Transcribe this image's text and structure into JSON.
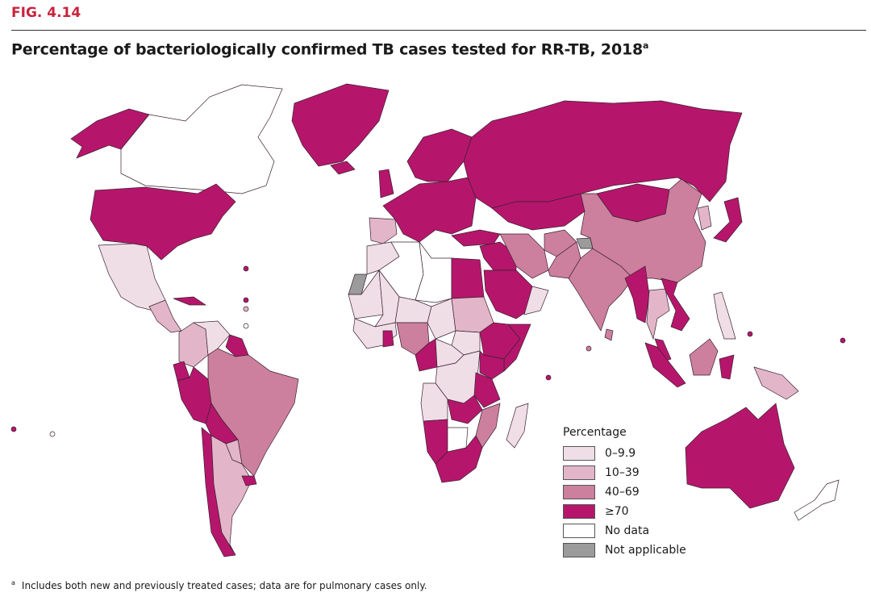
{
  "figure_label": "FIG. 4.14",
  "title": "Percentage of bacteriologically confirmed TB cases tested for RR-TB, 2018",
  "title_note": "a",
  "legend": {
    "title": "Percentage",
    "items": [
      {
        "key": "c1",
        "label": "0–9.9",
        "color": "#f0dee7"
      },
      {
        "key": "c2",
        "label": "10–39",
        "color": "#e2b6c8"
      },
      {
        "key": "c3",
        "label": "40–69",
        "color": "#cc809d"
      },
      {
        "key": "c4",
        "label": "≥70",
        "color": "#b5166b"
      },
      {
        "key": "nd",
        "label": "No data",
        "color": "#ffffff"
      },
      {
        "key": "na",
        "label": "Not applicable",
        "color": "#9b9b9b"
      }
    ]
  },
  "regions": {
    "alaska": "c4",
    "canada": "nd",
    "greenland": "c4",
    "usa": "c4",
    "mexico": "c1",
    "central-america": "c2",
    "cuba": "c4",
    "colombia": "c2",
    "venezuela": "c1",
    "guyana": "c4",
    "ecuador": "c4",
    "peru": "c4",
    "brazil": "c3",
    "bolivia": "c4",
    "paraguay": "c2",
    "chile": "c4",
    "argentina": "c2",
    "uruguay": "c4",
    "iceland": "c4",
    "uk": "c4",
    "europe": "c4",
    "spain": "c2",
    "scandinavia": "c4",
    "russia": "c4",
    "kazakhstan": "c4",
    "turkey": "c4",
    "morocco": "c1",
    "western-sahara": "na",
    "algeria": "nd",
    "libya": "nd",
    "egypt": "c4",
    "mauritania": "c1",
    "mali": "c1",
    "niger": "c1",
    "chad": "c1",
    "west-africa": "c1",
    "ghana": "c4",
    "nigeria": "c3",
    "cameroon": "c4",
    "sudan": "c2",
    "south-sudan": "c1",
    "ethiopia": "c4",
    "somalia": "c4",
    "central-africa": "c1",
    "drc": "c1",
    "kenya": "c4",
    "tanzania": "c4",
    "angola": "c1",
    "zambia": "c4",
    "mozambique": "c3",
    "namibia": "c4",
    "botswana": "nd",
    "south-africa": "c4",
    "madagascar": "c1",
    "middle-east": "c4",
    "saudi-arabia": "c4",
    "oman": "c1",
    "iran": "c3",
    "afghanistan": "c3",
    "pakistan": "c3",
    "kashmir": "na",
    "india": "c3",
    "mongolia": "c4",
    "china": "c3",
    "korea": "c2",
    "japan": "c4",
    "myanmar": "c4",
    "thailand": "c2",
    "vietnam": "c4",
    "philippines": "c1",
    "malaysia": "c4",
    "borneo": "c3",
    "sumatra": "c4",
    "sulawesi": "c4",
    "papua": "c2",
    "australia": "c4",
    "new-zealand": "nd",
    "sri-lanka": "c3"
  },
  "footnote_mark": "a",
  "footnote": "Includes both new and previously treated cases; data are for pulmonary cases only."
}
